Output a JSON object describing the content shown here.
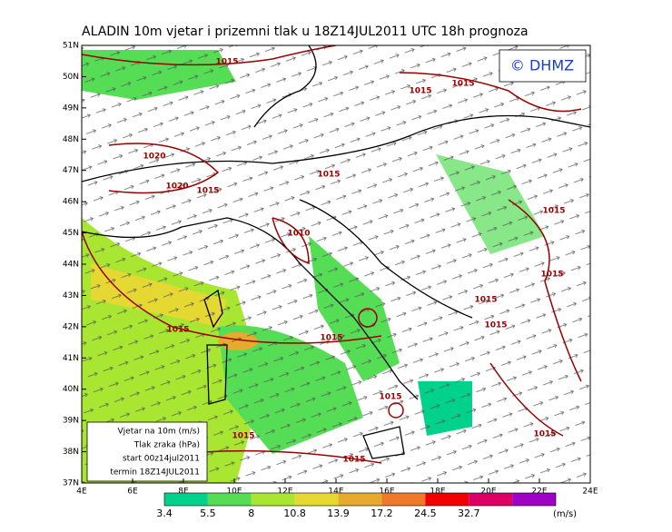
{
  "title": "ALADIN 10m vjetar i prizemni tlak u 18Z14JUL2011 UTC 18h prognoza",
  "logo": "© DHMZ",
  "lat_labels": [
    "51N",
    "50N",
    "49N",
    "48N",
    "47N",
    "46N",
    "45N",
    "44N",
    "43N",
    "42N",
    "41N",
    "40N",
    "39N",
    "38N",
    "37N"
  ],
  "lon_labels": [
    "4E",
    "6E",
    "8E",
    "10E",
    "12E",
    "14E",
    "16E",
    "18E",
    "20E",
    "22E",
    "24E"
  ],
  "legend": [
    "Vjetar na 10m (m/s)",
    "Tlak zraka (hPa)",
    "start 00z14jul2011",
    "termin 18Z14JUL2011"
  ],
  "isobar_labels": [
    "1015",
    "1015",
    "1015",
    "1020",
    "1020",
    "1015",
    "1015",
    "1015",
    "1010",
    "1015",
    "1015",
    "1015",
    "1015",
    "1015",
    "1015",
    "1015",
    "1015",
    "1015"
  ],
  "colorbar": {
    "labels": [
      "3.4",
      "5.5",
      "8",
      "10.8",
      "13.9",
      "17.2",
      "24.5",
      "32.7"
    ],
    "unit": "(m/s)",
    "colors": [
      "#00d28c",
      "#55dd55",
      "#a8e632",
      "#e6d832",
      "#e6aa2d",
      "#f07828",
      "#f00000",
      "#dc0064",
      "#a000c8"
    ]
  }
}
